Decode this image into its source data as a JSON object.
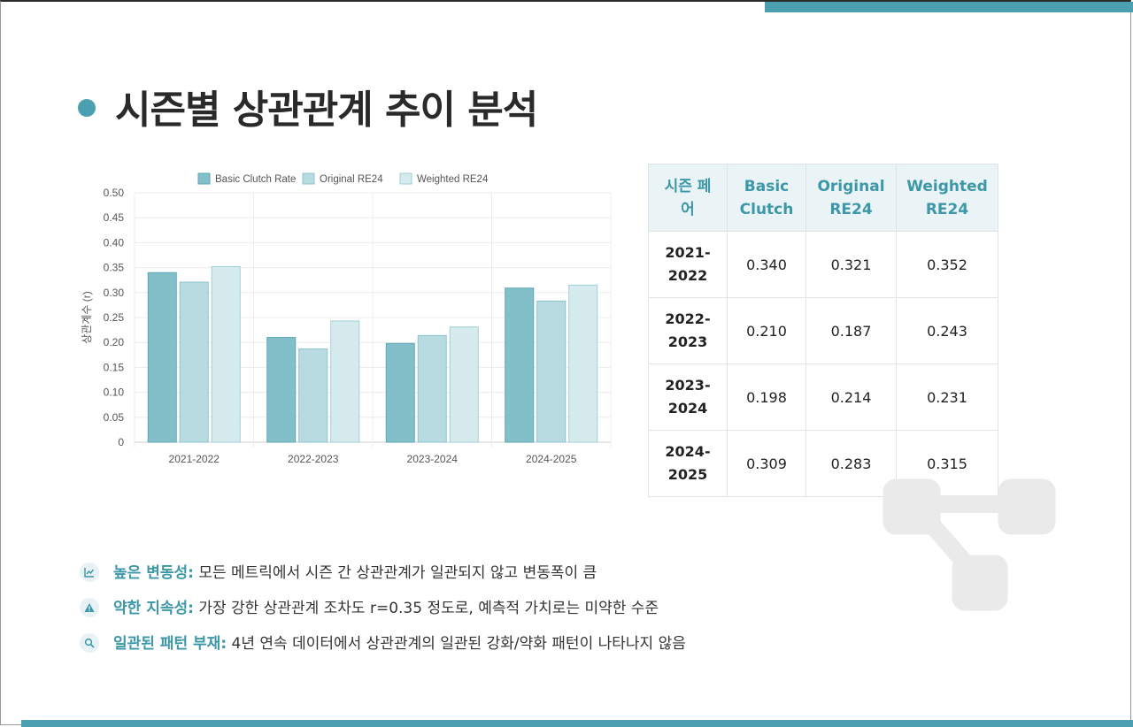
{
  "title": "시즌별 상관관계 추이 분석",
  "chart_data": {
    "type": "bar",
    "categories": [
      "2021-2022",
      "2022-2023",
      "2023-2024",
      "2024-2025"
    ],
    "series": [
      {
        "name": "Basic Clutch Rate",
        "values": [
          0.34,
          0.21,
          0.198,
          0.309
        ]
      },
      {
        "name": "Original RE24",
        "values": [
          0.321,
          0.187,
          0.214,
          0.283
        ]
      },
      {
        "name": "Weighted RE24",
        "values": [
          0.352,
          0.243,
          0.231,
          0.315
        ]
      }
    ],
    "ylabel": "상관계수 (r)",
    "ylim": [
      0,
      0.5
    ],
    "yticks": [
      "0",
      "0.05",
      "0.10",
      "0.15",
      "0.20",
      "0.25",
      "0.30",
      "0.35",
      "0.40",
      "0.45",
      "0.50"
    ],
    "grid": true,
    "legend": "top",
    "colors": {
      "fill": [
        "#82bfc9",
        "#b7dbe1",
        "#d6ebee"
      ],
      "stroke": [
        "#5ea9b6",
        "#8ec4cd",
        "#9fcfd6"
      ]
    }
  },
  "table": {
    "headers": [
      [
        "시즌 페",
        "어"
      ],
      [
        "Basic",
        "Clutch"
      ],
      [
        "Original",
        "RE24"
      ],
      [
        "Weighted",
        "RE24"
      ]
    ],
    "rows": [
      {
        "season": [
          "2021-",
          "2022"
        ],
        "values": [
          "0.340",
          "0.321",
          "0.352"
        ]
      },
      {
        "season": [
          "2022-",
          "2023"
        ],
        "values": [
          "0.210",
          "0.187",
          "0.243"
        ]
      },
      {
        "season": [
          "2023-",
          "2024"
        ],
        "values": [
          "0.198",
          "0.214",
          "0.231"
        ]
      },
      {
        "season": [
          "2024-",
          "2025"
        ],
        "values": [
          "0.309",
          "0.283",
          "0.315"
        ]
      }
    ]
  },
  "bullets": [
    {
      "icon": "chart-line-icon",
      "head": "높은 변동성:",
      "text": " 모든 메트릭에서 시즌 간 상관관계가 일관되지 않고 변동폭이 큼"
    },
    {
      "icon": "warning-icon",
      "head": "약한 지속성:",
      "text": " 가장 강한 상관관계 조차도 r=0.35 정도로, 예측적 가치로는 미약한 수준"
    },
    {
      "icon": "search-icon",
      "head": "일관된 패턴 부재:",
      "text": " 4년 연속 데이터에서 상관관계의 일관된 강화/약화 패턴이 나타나지 않음"
    }
  ],
  "colors": {
    "accent": "#4a9fb0",
    "header_bg": "#eaf3f5",
    "header_text": "#3c97a8"
  }
}
